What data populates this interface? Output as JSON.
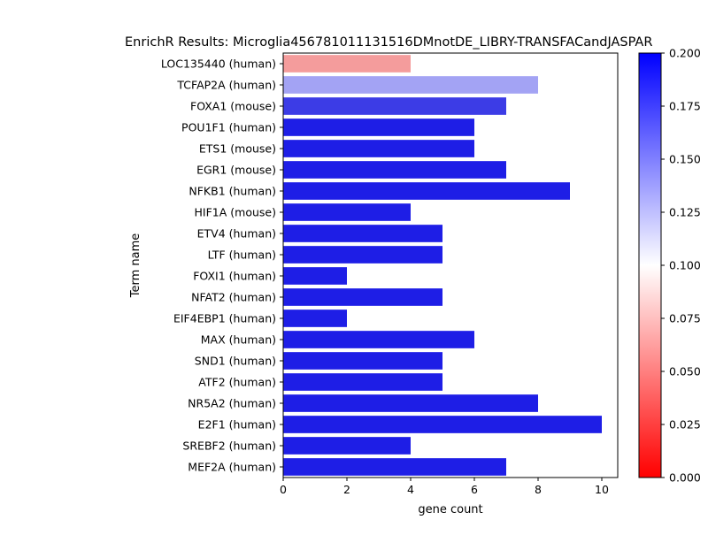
{
  "chart_data": {
    "type": "bar",
    "orientation": "horizontal",
    "title": "EnrichR Results: Microglia456781011131516DMnotDE_LIBRY-TRANSFACandJASPAR",
    "xlabel": "gene count",
    "ylabel": "Term name",
    "xlim": [
      0,
      10.5
    ],
    "x_ticks": [
      "0",
      "2",
      "4",
      "6",
      "8",
      "10"
    ],
    "categories": [
      "LOC135440 (human)",
      "TCFAP2A (human)",
      "FOXA1 (mouse)",
      "POU1F1 (human)",
      "ETS1 (mouse)",
      "EGR1 (mouse)",
      "NFKB1 (human)",
      "HIF1A (mouse)",
      "ETV4 (human)",
      "LTF (human)",
      "FOXI1 (human)",
      "NFAT2 (human)",
      "EIF4EBP1 (human)",
      "MAX (human)",
      "SND1 (human)",
      "ATF2 (human)",
      "NR5A2 (human)",
      "E2F1 (human)",
      "SREBF2 (human)",
      "MEF2A (human)"
    ],
    "values": [
      4,
      8,
      7,
      6,
      6,
      7,
      9,
      4,
      5,
      5,
      2,
      5,
      2,
      6,
      5,
      5,
      8,
      10,
      4,
      7
    ],
    "bar_colors": [
      "#f49c9c",
      "#a3a3f4",
      "#3c3ce6",
      "#1e1ee6",
      "#1e1ee6",
      "#1e1ee6",
      "#1e1ee6",
      "#1e1ee6",
      "#1e1ee6",
      "#1e1ee6",
      "#1e1ee6",
      "#1e1ee6",
      "#1e1ee6",
      "#1e1ee6",
      "#1e1ee6",
      "#1e1ee6",
      "#1e1ee6",
      "#1e1ee6",
      "#1e1ee6",
      "#1e1ee6"
    ],
    "colorbar": {
      "range": [
        0.0,
        0.2
      ],
      "ticks": [
        "0.000",
        "0.025",
        "0.050",
        "0.075",
        "0.100",
        "0.125",
        "0.150",
        "0.175",
        "0.200"
      ],
      "colormap": [
        "#ff0000",
        "#ffffff",
        "#0000ff"
      ]
    },
    "grid": false,
    "legend": "none"
  }
}
